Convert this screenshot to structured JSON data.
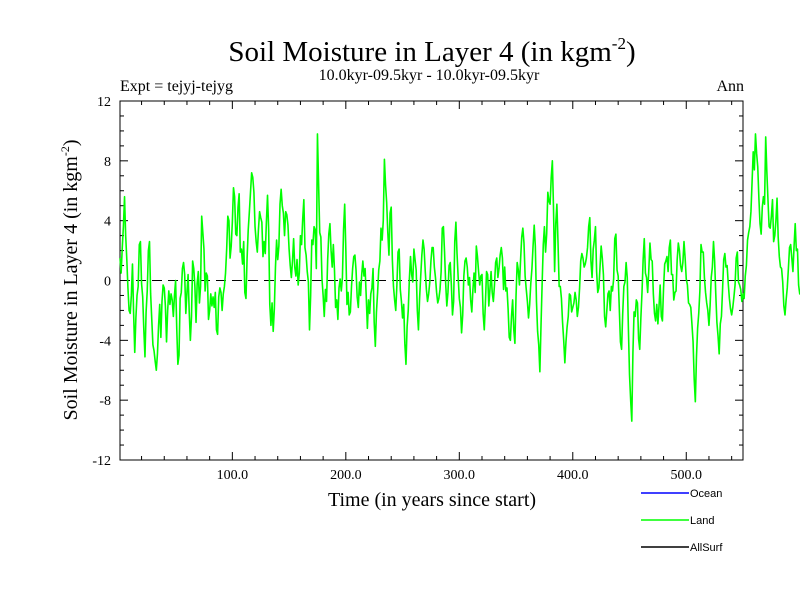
{
  "chart_data": {
    "type": "line",
    "title": "Soil Moisture in Layer 4 (in kgm",
    "title_sup": "-2",
    "title_close": ")",
    "subtitle_left": "Expt = tejyj-tejyg",
    "subtitle_center": "10.0kyr-09.5kyr - 10.0kyr-09.5kyr",
    "subtitle_right": "Ann",
    "xlabel": "Time (in years since start)",
    "ylabel": "Soil Moisture in Layer 4 (in kgm",
    "ylabel_sup": "-2",
    "ylabel_close": ")",
    "xlim": [
      1,
      550
    ],
    "ylim": [
      -12,
      12
    ],
    "x_ticks": [
      100,
      200,
      300,
      400,
      500
    ],
    "x_tick_labels": [
      "100.0",
      "200.0",
      "300.0",
      "400.0",
      "500.0"
    ],
    "y_ticks": [
      -12,
      -8,
      -4,
      0,
      4,
      8,
      12
    ],
    "y_tick_labels": [
      "-12",
      "-8",
      "-4",
      "0",
      "4",
      "8",
      "12"
    ],
    "zero_line": true,
    "legend_position": "bottom-right",
    "series": [
      {
        "name": "Ocean",
        "color": "#0000ff",
        "values": []
      },
      {
        "name": "Land",
        "color": "#00ff00",
        "x_start": 1,
        "x_step": 1,
        "values": [
          1.5,
          0.5,
          2.2,
          3.6,
          5.6,
          3.0,
          1.4,
          -0.5,
          -2.0,
          -2.2,
          -1.0,
          1.1,
          -2.2,
          -4.8,
          -2.5,
          -1.0,
          -0.4,
          2.4,
          2.6,
          -0.2,
          -1.1,
          -3.3,
          -5.1,
          -2.1,
          -0.7,
          2.0,
          2.6,
          -0.9,
          -2.6,
          -4.3,
          -4.7,
          -5.4,
          -6.0,
          -4.9,
          -3.0,
          -1.6,
          -3.8,
          -1.4,
          -0.3,
          -0.5,
          -1.7,
          -4.1,
          -2.0,
          -0.7,
          -1.6,
          -0.9,
          -1.3,
          -2.4,
          -1.0,
          0.0,
          -3.2,
          -5.6,
          -5.0,
          -1.2,
          -0.8,
          0.8,
          1.2,
          0.4,
          -2.2,
          -0.8,
          0.4,
          -2.1,
          -4.0,
          -2.4,
          1.3,
          0.8,
          -0.4,
          -2.8,
          -0.2,
          0.6,
          -1.5,
          -0.4,
          4.3,
          3.2,
          2.1,
          -0.7,
          0.5,
          0.3,
          -2.6,
          -2.0,
          -0.9,
          -1.7,
          -1.1,
          -1.8,
          -0.8,
          -3.3,
          -3.6,
          -1.1,
          -0.5,
          -0.8,
          -2.0,
          -0.9,
          -0.4,
          0.5,
          2.1,
          4.3,
          4.0,
          1.5,
          2.3,
          3.9,
          6.2,
          5.6,
          3.1,
          3.0,
          4.9,
          5.8,
          1.9,
          2.1,
          1.1,
          2.6,
          -0.8,
          -1.2,
          1.5,
          3.4,
          4.6,
          5.9,
          7.2,
          6.9,
          5.9,
          3.6,
          2.6,
          1.9,
          3.4,
          4.6,
          4.2,
          3.9,
          1.6,
          2.6,
          1.8,
          3.9,
          5.7,
          3.4,
          -1.6,
          -3.0,
          -1.5,
          -3.4,
          -1.9,
          0.9,
          2.7,
          1.4,
          2.3,
          5.1,
          6.1,
          5.0,
          4.5,
          3.0,
          4.6,
          4.4,
          3.7,
          2.1,
          1.0,
          0.2,
          1.3,
          2.8,
          0.9,
          0.3,
          1.4,
          -0.3,
          0.5,
          3.0,
          2.4,
          4.1,
          5.4,
          2.2,
          1.7,
          0.6,
          -0.1,
          -3.3,
          -1.0,
          2.7,
          2.4,
          3.6,
          3.4,
          0.8,
          9.8,
          6.5,
          3.2,
          2.9,
          0.1,
          -1.0,
          -2.4,
          -0.6,
          -1.4,
          1.4,
          3.1,
          3.8,
          2.0,
          0.9,
          2.4,
          0.7,
          -1.8,
          -1.3,
          -2.6,
          -0.5,
          0.1,
          -0.7,
          0.2,
          3.4,
          5.1,
          2.1,
          -1.6,
          -0.8,
          -2.3,
          -2.1,
          -0.4,
          0.8,
          1.6,
          1.7,
          0.7,
          -1.1,
          -1.8,
          -0.1,
          -1.0,
          0.4,
          1.3,
          0.3,
          0.8,
          -1.1,
          -3.2,
          -1.3,
          -2.2,
          -0.9,
          -0.5,
          0.8,
          -2.8,
          -4.4,
          -2.1,
          -0.8,
          0.7,
          1.3,
          3.5,
          2.7,
          4.0,
          8.1,
          6.4,
          5.2,
          3.2,
          1.7,
          4.5,
          4.9,
          1.4,
          -0.4,
          -1.3,
          -2.0,
          -0.3,
          1.9,
          2.1,
          -0.6,
          -1.4,
          -2.5,
          -1.6,
          -4.2,
          -5.6,
          -3.1,
          -2.0,
          0.1,
          1.6,
          0.4,
          -0.1,
          2.1,
          1.4,
          0.7,
          -2.0,
          -3.3,
          -1.2,
          0.3,
          1.7,
          2.7,
          2.1,
          0.6,
          -0.6,
          -1.4,
          -0.9,
          -0.1,
          1.3,
          2.2,
          2.2,
          0.9,
          0.2,
          -0.8,
          -1.5,
          -1.2,
          -0.6,
          0.6,
          3.5,
          3.6,
          1.9,
          -0.2,
          -1.7,
          -0.8,
          1.0,
          1.2,
          -0.3,
          -2.3,
          -1.4,
          2.6,
          3.9,
          1.8,
          0.2,
          -1.2,
          -1.8,
          -3.5,
          -2.3,
          0.3,
          1.3,
          1.5,
          0.9,
          -0.3,
          0.2,
          -1.3,
          -2.1,
          -0.6,
          0.5,
          -0.8,
          2.3,
          1.6,
          0.6,
          -0.3,
          0.3,
          0.4,
          -2.2,
          -3.3,
          -1.5,
          0.6,
          0.4,
          -1.7,
          -0.6,
          0.6,
          -0.8,
          -1.4,
          -0.3,
          1.2,
          1.5,
          0.2,
          0.8,
          1.7,
          2.2,
          1.5,
          -0.6,
          0.9,
          -0.7,
          -0.5,
          -1.9,
          -3.8,
          -4.0,
          -2.4,
          -1.3,
          -3.3,
          -4.2,
          -1.0,
          1.2,
          0.7,
          -0.3,
          1.4,
          2.9,
          3.5,
          2.5,
          0.3,
          -0.6,
          -1.4,
          -2.5,
          -1.6,
          -0.2,
          0.8,
          2.3,
          3.7,
          2.3,
          -1.4,
          -3.4,
          -4.3,
          -6.1,
          -3.0,
          -0.2,
          2.4,
          3.6,
          1.9,
          3.1,
          5.9,
          5.3,
          5.1,
          6.9,
          8.0,
          4.9,
          0.6,
          3.8,
          5.1,
          2.5,
          -0.4,
          -0.4,
          -1.2,
          -2.8,
          -4.0,
          -5.5,
          -4.1,
          -3.1,
          -2.4,
          -0.9,
          -1.0,
          -2.1,
          -1.8,
          -1.5,
          -0.8,
          -1.3,
          -2.4,
          -1.8,
          -0.5,
          1.3,
          1.8,
          1.5,
          0.9,
          1.1,
          1.5,
          2.2,
          3.6,
          4.2,
          1.3,
          0.2,
          2.1,
          2.7,
          3.6,
          0.6,
          -0.8,
          -0.5,
          0.9,
          2.3,
          1.5,
          0.4,
          -2.4,
          -3.1,
          -2.0,
          -0.9,
          -0.7,
          -2.0,
          -0.4,
          -0.7,
          0.1,
          2.8,
          3.1,
          0.7,
          0.3,
          -1.9,
          -4.1,
          -4.6,
          -2.2,
          -0.4,
          -0.1,
          1.2,
          0.2,
          -3.2,
          -6.3,
          -8.0,
          -9.4,
          -4.8,
          -2.1,
          -2.4,
          -1.3,
          -1.5,
          -3.9,
          -4.6,
          -2.5,
          -0.8,
          1.4,
          2.8,
          0.5,
          0.2,
          -0.8,
          0.7,
          2.5,
          1.4,
          1.3,
          -0.9,
          -2.2,
          -2.7,
          -1.6,
          -2.9,
          -1.7,
          -0.3,
          -2.4,
          -2.7,
          -0.5,
          1.1,
          1.3,
          1.6,
          0.6,
          2.2,
          2.7,
          0.4,
          0.4,
          -1.3,
          -0.8,
          -0.7,
          1.4,
          2.5,
          2.0,
          1.0,
          0.6,
          1.2,
          2.6,
          1.5,
          0.1,
          -0.3,
          -1.5,
          -1.6,
          -1.8,
          -2.9,
          -4.1,
          -6.6,
          -8.1,
          -5.1,
          -3.2,
          -2.2,
          -0.7,
          2.4,
          1.9,
          1.9,
          0.2,
          -0.8,
          -1.5,
          -2.0,
          -3.0,
          -1.7,
          0.2,
          0.9,
          2.6,
          1.3,
          -0.9,
          -2.8,
          -3.7,
          -4.9,
          -2.9,
          -2.4,
          -0.6,
          1.4,
          1.8,
          0.9,
          1.0,
          -0.2,
          -1.2,
          -1.9,
          -2.3,
          -1.8,
          -1.1,
          -0.3,
          1.5,
          1.9,
          -0.1,
          -0.3,
          -0.6,
          -1.4,
          -0.9,
          -1.2,
          0.3,
          1.0,
          2.7,
          3.2,
          3.6,
          4.6,
          6.6,
          8.6,
          7.4,
          9.8,
          8.5,
          7.6,
          5.5,
          3.8,
          3.1,
          4.9,
          5.6,
          5.1,
          9.6,
          7.3,
          5.4,
          3.6,
          3.5,
          4.3,
          5.4,
          2.6,
          3.0,
          4.0,
          5.5,
          2.9,
          1.6,
          0.9,
          0.8,
          -0.1,
          -1.7,
          -2.3,
          -1.3,
          -0.5,
          0.8,
          2.2,
          2.4,
          1.5,
          0.6,
          2.3,
          3.8,
          2.0,
          2.1,
          -0.3,
          -0.9,
          -0.9
        ]
      },
      {
        "name": "AllSurf",
        "color": "#000000",
        "values": []
      }
    ]
  }
}
